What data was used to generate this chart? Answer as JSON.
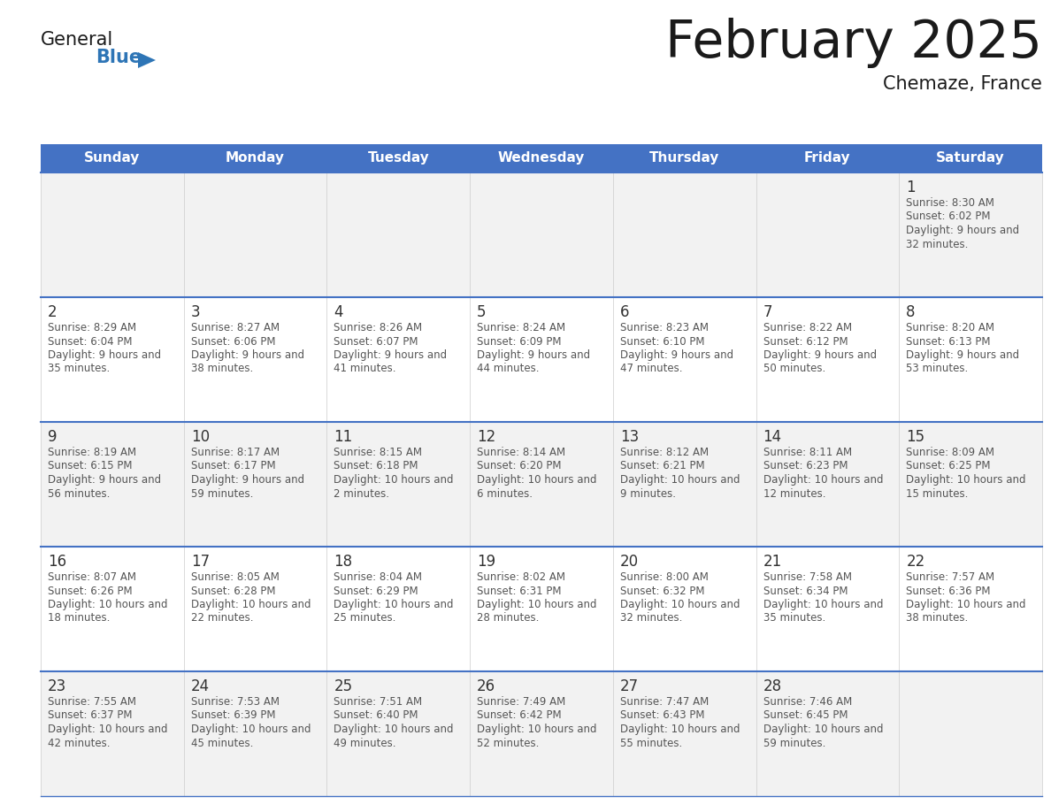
{
  "title": "February 2025",
  "subtitle": "Chemaze, France",
  "days_of_week": [
    "Sunday",
    "Monday",
    "Tuesday",
    "Wednesday",
    "Thursday",
    "Friday",
    "Saturday"
  ],
  "header_bg": "#4472C4",
  "header_text": "#FFFFFF",
  "row_bg_odd": "#F2F2F2",
  "row_bg_even": "#FFFFFF",
  "border_color": "#4472C4",
  "day_number_color": "#333333",
  "info_color": "#555555",
  "logo_black": "#1a1a1a",
  "logo_blue": "#2E75B6",
  "title_color": "#1a1a1a",
  "calendar_data": [
    [
      null,
      null,
      null,
      null,
      null,
      null,
      {
        "day": "1",
        "sunrise": "8:30 AM",
        "sunset": "6:02 PM",
        "daylight": "9 hours and 32 minutes."
      }
    ],
    [
      {
        "day": "2",
        "sunrise": "8:29 AM",
        "sunset": "6:04 PM",
        "daylight": "9 hours and 35 minutes."
      },
      {
        "day": "3",
        "sunrise": "8:27 AM",
        "sunset": "6:06 PM",
        "daylight": "9 hours and 38 minutes."
      },
      {
        "day": "4",
        "sunrise": "8:26 AM",
        "sunset": "6:07 PM",
        "daylight": "9 hours and 41 minutes."
      },
      {
        "day": "5",
        "sunrise": "8:24 AM",
        "sunset": "6:09 PM",
        "daylight": "9 hours and 44 minutes."
      },
      {
        "day": "6",
        "sunrise": "8:23 AM",
        "sunset": "6:10 PM",
        "daylight": "9 hours and 47 minutes."
      },
      {
        "day": "7",
        "sunrise": "8:22 AM",
        "sunset": "6:12 PM",
        "daylight": "9 hours and 50 minutes."
      },
      {
        "day": "8",
        "sunrise": "8:20 AM",
        "sunset": "6:13 PM",
        "daylight": "9 hours and 53 minutes."
      }
    ],
    [
      {
        "day": "9",
        "sunrise": "8:19 AM",
        "sunset": "6:15 PM",
        "daylight": "9 hours and 56 minutes."
      },
      {
        "day": "10",
        "sunrise": "8:17 AM",
        "sunset": "6:17 PM",
        "daylight": "9 hours and 59 minutes."
      },
      {
        "day": "11",
        "sunrise": "8:15 AM",
        "sunset": "6:18 PM",
        "daylight": "10 hours and 2 minutes."
      },
      {
        "day": "12",
        "sunrise": "8:14 AM",
        "sunset": "6:20 PM",
        "daylight": "10 hours and 6 minutes."
      },
      {
        "day": "13",
        "sunrise": "8:12 AM",
        "sunset": "6:21 PM",
        "daylight": "10 hours and 9 minutes."
      },
      {
        "day": "14",
        "sunrise": "8:11 AM",
        "sunset": "6:23 PM",
        "daylight": "10 hours and 12 minutes."
      },
      {
        "day": "15",
        "sunrise": "8:09 AM",
        "sunset": "6:25 PM",
        "daylight": "10 hours and 15 minutes."
      }
    ],
    [
      {
        "day": "16",
        "sunrise": "8:07 AM",
        "sunset": "6:26 PM",
        "daylight": "10 hours and 18 minutes."
      },
      {
        "day": "17",
        "sunrise": "8:05 AM",
        "sunset": "6:28 PM",
        "daylight": "10 hours and 22 minutes."
      },
      {
        "day": "18",
        "sunrise": "8:04 AM",
        "sunset": "6:29 PM",
        "daylight": "10 hours and 25 minutes."
      },
      {
        "day": "19",
        "sunrise": "8:02 AM",
        "sunset": "6:31 PM",
        "daylight": "10 hours and 28 minutes."
      },
      {
        "day": "20",
        "sunrise": "8:00 AM",
        "sunset": "6:32 PM",
        "daylight": "10 hours and 32 minutes."
      },
      {
        "day": "21",
        "sunrise": "7:58 AM",
        "sunset": "6:34 PM",
        "daylight": "10 hours and 35 minutes."
      },
      {
        "day": "22",
        "sunrise": "7:57 AM",
        "sunset": "6:36 PM",
        "daylight": "10 hours and 38 minutes."
      }
    ],
    [
      {
        "day": "23",
        "sunrise": "7:55 AM",
        "sunset": "6:37 PM",
        "daylight": "10 hours and 42 minutes."
      },
      {
        "day": "24",
        "sunrise": "7:53 AM",
        "sunset": "6:39 PM",
        "daylight": "10 hours and 45 minutes."
      },
      {
        "day": "25",
        "sunrise": "7:51 AM",
        "sunset": "6:40 PM",
        "daylight": "10 hours and 49 minutes."
      },
      {
        "day": "26",
        "sunrise": "7:49 AM",
        "sunset": "6:42 PM",
        "daylight": "10 hours and 52 minutes."
      },
      {
        "day": "27",
        "sunrise": "7:47 AM",
        "sunset": "6:43 PM",
        "daylight": "10 hours and 55 minutes."
      },
      {
        "day": "28",
        "sunrise": "7:46 AM",
        "sunset": "6:45 PM",
        "daylight": "10 hours and 59 minutes."
      },
      null
    ]
  ]
}
